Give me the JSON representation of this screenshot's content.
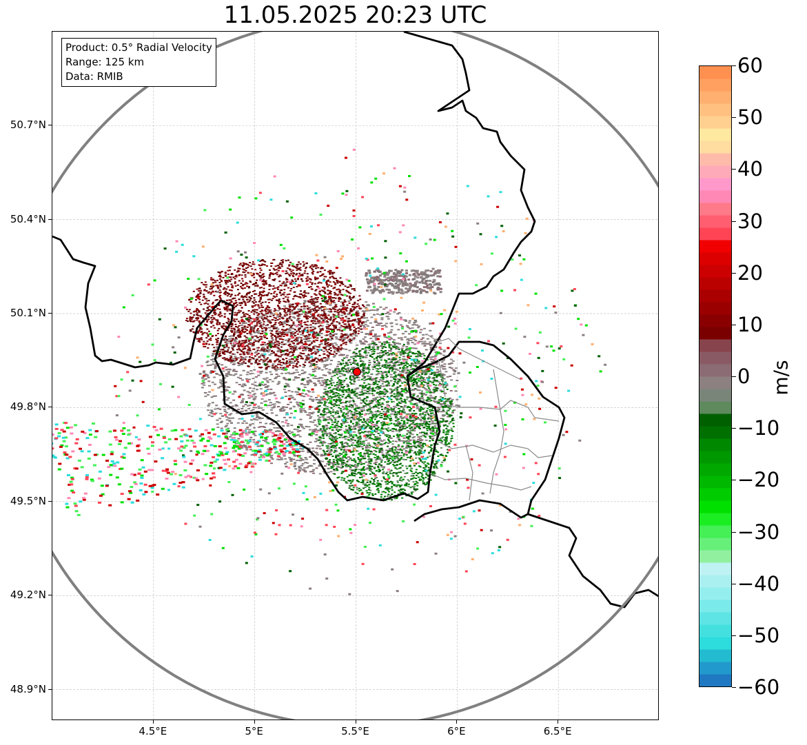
{
  "title": "11.05.2025 20:23 UTC",
  "info_box": {
    "product": "Product: 0.5° Radial Velocity",
    "range": "Range: 125 km",
    "data": "Data: RMIB"
  },
  "map": {
    "lon_range": [
      4.0,
      7.0
    ],
    "lat_range": [
      48.8,
      51.0
    ],
    "lat_ticks": [
      {
        "value": 48.9,
        "label": "48.9°N"
      },
      {
        "value": 49.2,
        "label": "49.2°N"
      },
      {
        "value": 49.5,
        "label": "49.5°N"
      },
      {
        "value": 49.8,
        "label": "49.8°N"
      },
      {
        "value": 50.1,
        "label": "50.1°N"
      },
      {
        "value": 50.4,
        "label": "50.4°N"
      },
      {
        "value": 50.7,
        "label": "50.7°N"
      }
    ],
    "lon_ticks": [
      {
        "value": 4.5,
        "label": "4.5°E"
      },
      {
        "value": 5.0,
        "label": "5°E"
      },
      {
        "value": 5.5,
        "label": "5.5°E"
      },
      {
        "value": 6.0,
        "label": "6°E"
      },
      {
        "value": 6.5,
        "label": "6.5°E"
      }
    ],
    "radar_site": {
      "lon": 5.505,
      "lat": 49.914
    },
    "range_km": 125,
    "grid": true,
    "range_ring_color": "#808080",
    "site_marker_color": "#ff0000"
  },
  "colorbar": {
    "unit": "m/s",
    "min": -60,
    "max": 60,
    "ticks": [
      {
        "value": 60,
        "label": "60"
      },
      {
        "value": 50,
        "label": "50"
      },
      {
        "value": 40,
        "label": "40"
      },
      {
        "value": 30,
        "label": "30"
      },
      {
        "value": 20,
        "label": "20"
      },
      {
        "value": 10,
        "label": "10"
      },
      {
        "value": 0,
        "label": "0"
      },
      {
        "value": -10,
        "label": "−10"
      },
      {
        "value": -20,
        "label": "−20"
      },
      {
        "value": -30,
        "label": "−30"
      },
      {
        "value": -40,
        "label": "−40"
      },
      {
        "value": -50,
        "label": "−50"
      },
      {
        "value": -60,
        "label": "−60"
      }
    ],
    "colors": [
      "#1f78c1",
      "#2299cc",
      "#22bbd0",
      "#2ddcdc",
      "#44e0e0",
      "#5ee4e4",
      "#7aeaea",
      "#95eeee",
      "#abf0f0",
      "#bff2f2",
      "#90f0a0",
      "#66f07a",
      "#44f055",
      "#1aee22",
      "#00e000",
      "#00cc00",
      "#00b800",
      "#00a800",
      "#009800",
      "#008800",
      "#007000",
      "#006000",
      "#5e8a5e",
      "#7a857a",
      "#8c8080",
      "#8c6c74",
      "#8a5a64",
      "#88444c",
      "#7a0000",
      "#8a0000",
      "#9a0000",
      "#aa0000",
      "#bb0000",
      "#cc0000",
      "#dd0000",
      "#f00000",
      "#ff4455",
      "#ff5e70",
      "#ff7a88",
      "#ff88b4",
      "#ff99cc",
      "#ffaab8",
      "#ffbbaa",
      "#ffdda0",
      "#ffe8a0",
      "#ffd090",
      "#ffc080",
      "#ffb070",
      "#ffa060",
      "#ff9050"
    ]
  }
}
